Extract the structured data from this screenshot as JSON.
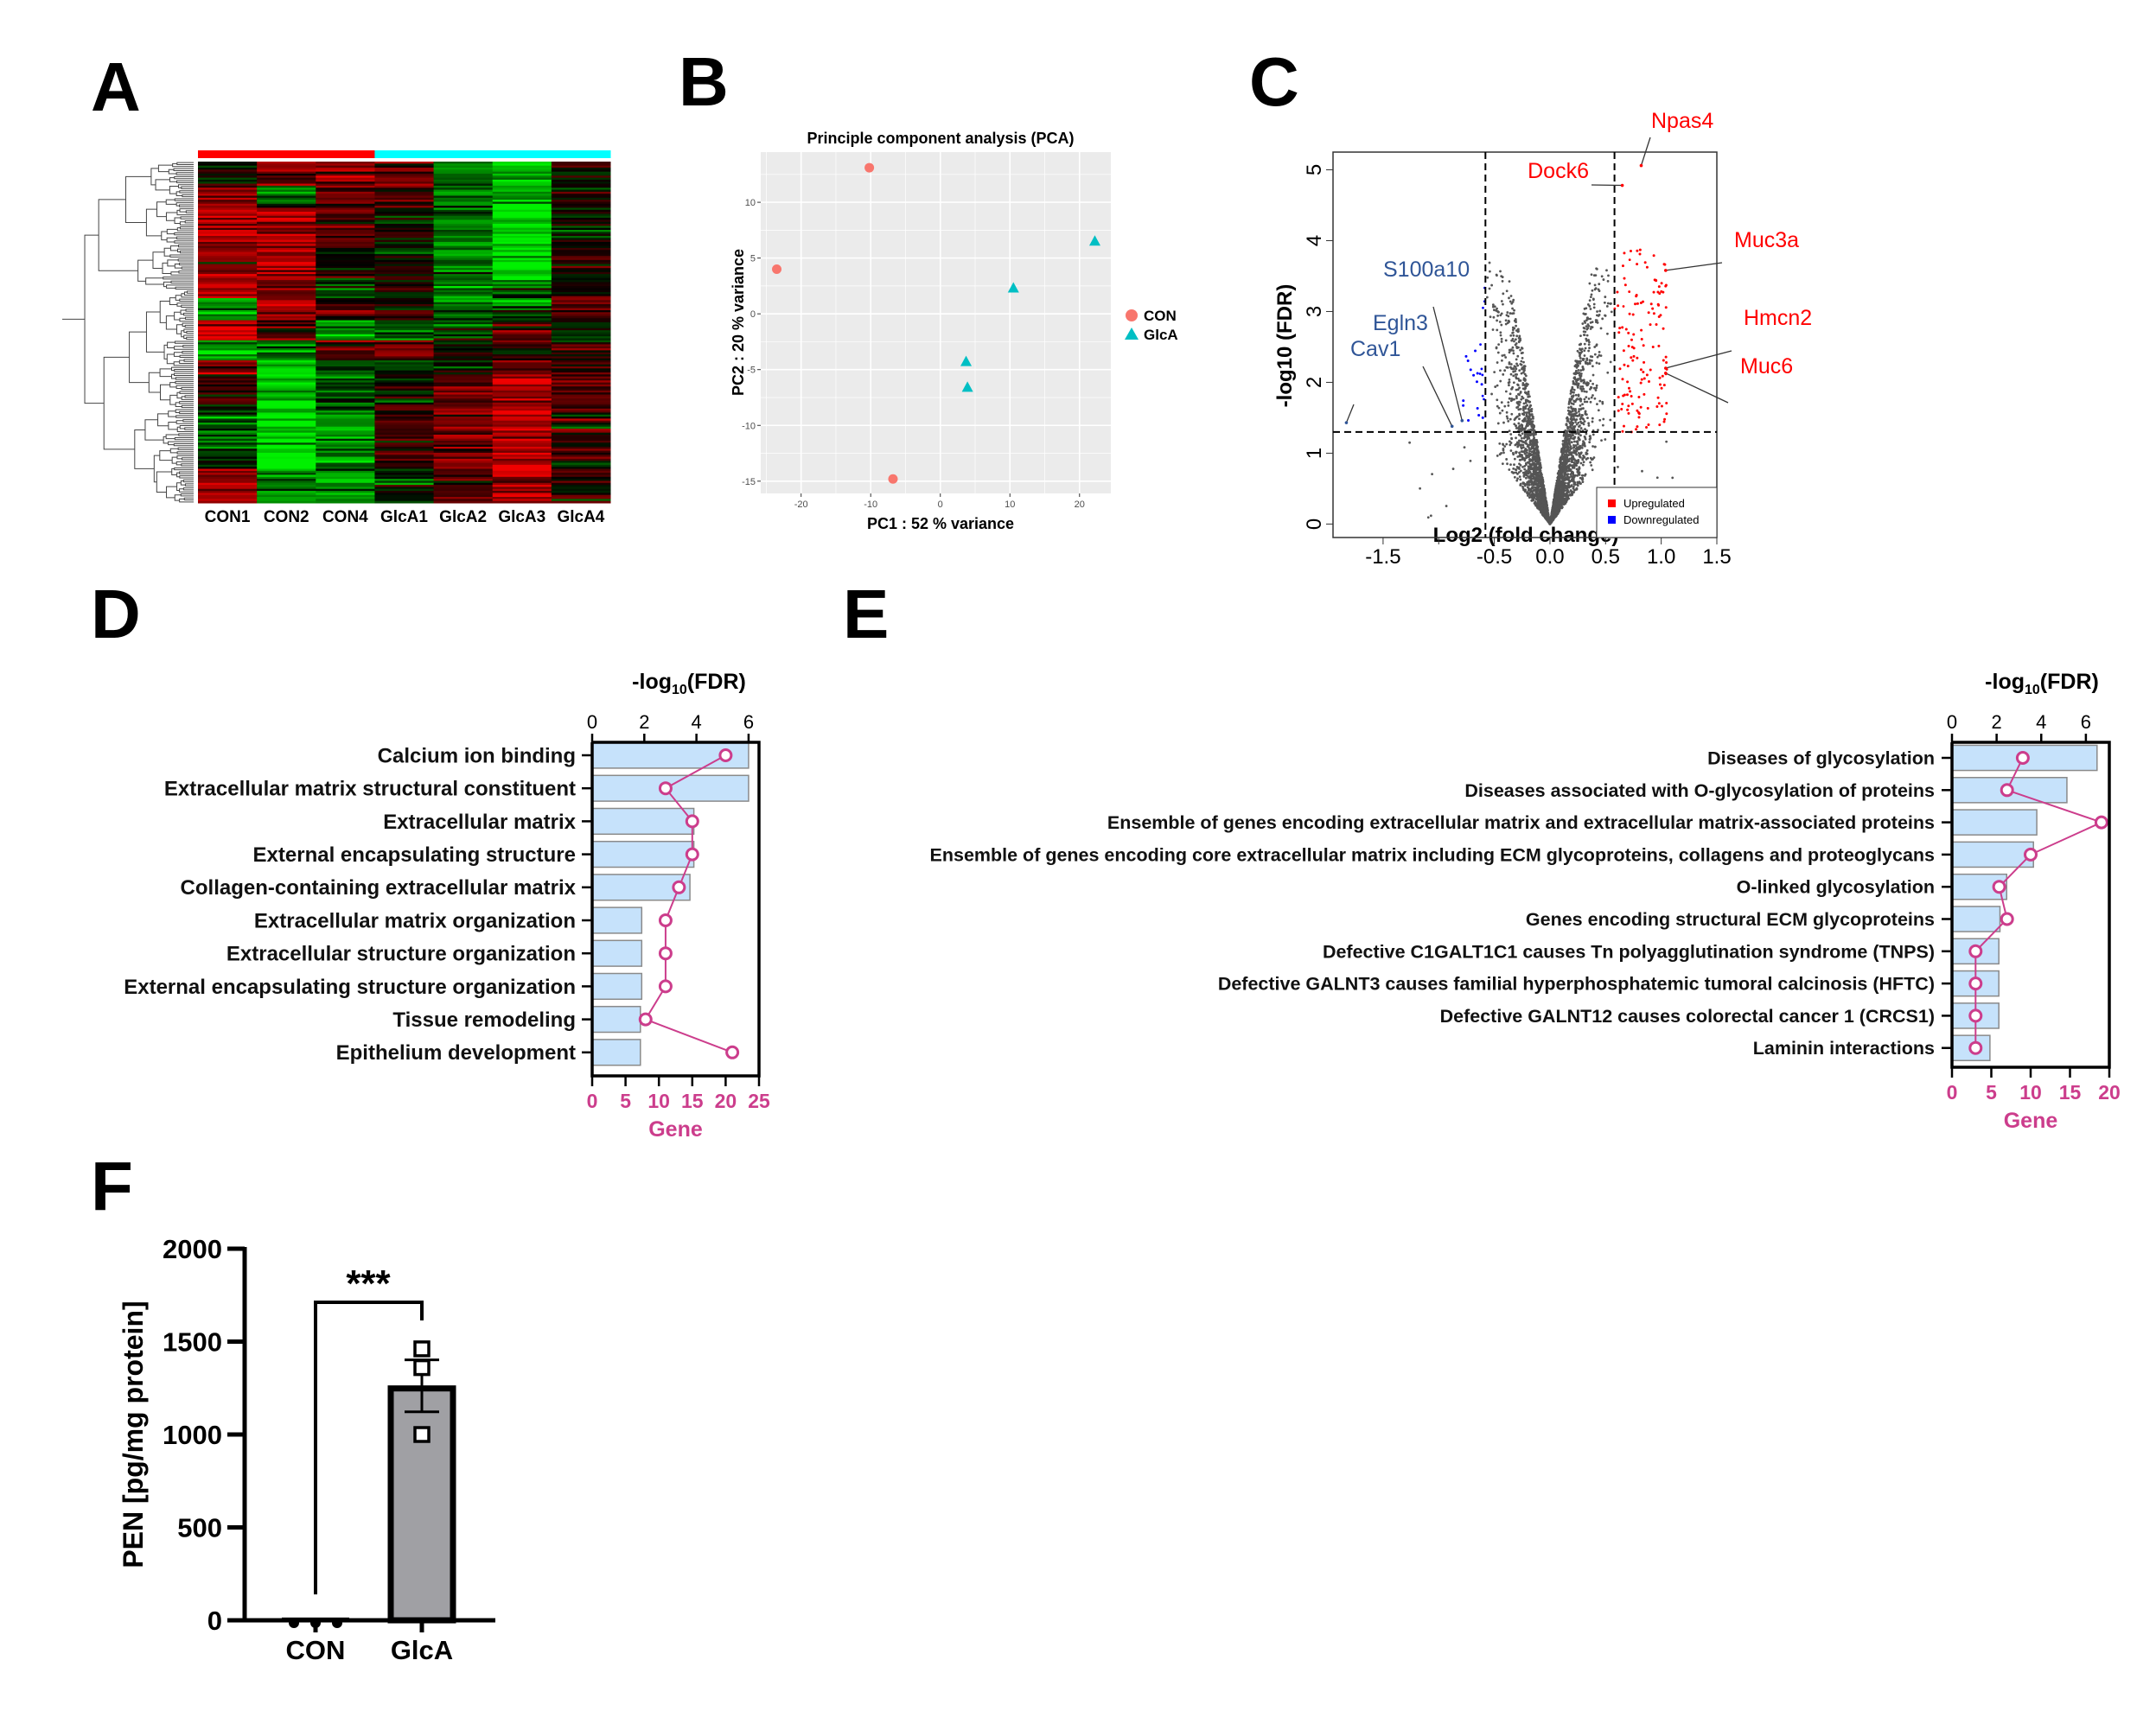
{
  "panel_labels": {
    "A": "A",
    "B": "B",
    "C": "C",
    "D": "D",
    "E": "E",
    "F": "F"
  },
  "chart_data": [
    {
      "panel": "A",
      "type": "heatmap",
      "columns": [
        "CON1",
        "CON2",
        "CON4",
        "GlcA1",
        "GlcA2",
        "GlcA3",
        "GlcA4"
      ],
      "column_group_colors": [
        "#ff0000",
        "#ff0000",
        "#ff0000",
        "#00ffff",
        "#00ffff",
        "#00ffff",
        "#00ffff"
      ],
      "color_scale": {
        "high": "#ff0000",
        "mid": "#000000",
        "low": "#00ff00"
      },
      "row_dendrogram": true
    },
    {
      "panel": "B",
      "type": "scatter",
      "title": "Principle component analysis (PCA)",
      "xlabel": "PC1 : 52 % variance",
      "ylabel": "PC2 : 20 % variance",
      "xlim": [
        -25.8,
        24.5
      ],
      "ylim": [
        -16.1,
        14.5
      ],
      "xticks": [
        -20,
        -10,
        0,
        10,
        20
      ],
      "yticks": [
        -15,
        -10,
        -5,
        0,
        5,
        10
      ],
      "grid": true,
      "legend": "right",
      "series": [
        {
          "name": "CON",
          "color": "#f8766d",
          "marker": "circle",
          "points": [
            [
              -23.5,
              4.0
            ],
            [
              -10.2,
              13.1
            ],
            [
              -6.8,
              -14.8
            ]
          ]
        },
        {
          "name": "GlcA",
          "color": "#00bfc4",
          "marker": "triangle",
          "points": [
            [
              22.2,
              6.5
            ],
            [
              10.5,
              2.3
            ],
            [
              3.7,
              -4.3
            ],
            [
              3.9,
              -6.6
            ]
          ]
        }
      ]
    },
    {
      "panel": "C",
      "type": "scatter",
      "xlabel": "Log2 (fold change)",
      "ylabel": "-log10 (FDR)",
      "xlim": [
        -1.95,
        1.5
      ],
      "ylim": [
        -0.19,
        5.25
      ],
      "xticks": [
        -1.5,
        -1.0,
        -0.5,
        0.0,
        0.5,
        1.0,
        1.5
      ],
      "xtick_labels": [
        "-1.5",
        "",
        "-0.5",
        "0.0",
        "0.5",
        "1.0",
        "1.5"
      ],
      "yticks": [
        0,
        1,
        2,
        3,
        4,
        5
      ],
      "thresholds": {
        "log2fc": 0.58,
        "neg_log10_fdr": 1.3
      },
      "legend": "bottom-right",
      "legend_entries": [
        {
          "label": "Upregulated",
          "color": "#ff0000"
        },
        {
          "label": "Downregulated",
          "color": "#0000ff"
        }
      ],
      "point_color": "#555555",
      "labeled_genes": [
        {
          "name": "Npas4",
          "x": 0.82,
          "y": 5.06,
          "direction": "up"
        },
        {
          "name": "Dock6",
          "x": 0.65,
          "y": 4.78,
          "direction": "up"
        },
        {
          "name": "Muc3a",
          "x": 1.04,
          "y": 3.58,
          "direction": "up"
        },
        {
          "name": "Hmcn2",
          "x": 1.04,
          "y": 2.2,
          "direction": "up"
        },
        {
          "name": "Muc6",
          "x": 1.04,
          "y": 2.13,
          "direction": "up"
        },
        {
          "name": "S100a10",
          "x": -0.79,
          "y": 1.46,
          "direction": "down"
        },
        {
          "name": "Egln3",
          "x": -0.88,
          "y": 1.38,
          "direction": "down"
        },
        {
          "name": "Cav1",
          "x": -1.83,
          "y": 1.43,
          "direction": "down"
        }
      ]
    },
    {
      "panel": "D",
      "type": "bar",
      "orientation": "horizontal",
      "top_axis_title": {
        "prefix": "-log",
        "sub": "10",
        "suffix": "(FDR)"
      },
      "bottom_axis_title": "Gene",
      "fdr_ticks": [
        0,
        2,
        4,
        6
      ],
      "gene_ticks": [
        0,
        5,
        10,
        15,
        20,
        25
      ],
      "fdr_lim": [
        0,
        6.4
      ],
      "gene_lim": [
        0,
        25
      ],
      "bar_color": "#c6e2fb",
      "line_color": "#cc3d8c",
      "categories": [
        "Calcium ion binding",
        "Extracellular matrix structural constituent",
        "Extracellular matrix",
        "External encapsulating structure",
        "Collagen-containing extracellular matrix",
        "Extracellular matrix organization",
        "Extracellular structure organization",
        "External encapsulating structure organization",
        "Tissue remodeling",
        "Epithelium development"
      ],
      "neg_log10_fdr": [
        6.0,
        6.0,
        3.9,
        3.9,
        3.75,
        1.9,
        1.9,
        1.9,
        1.85,
        1.85
      ],
      "gene_count": [
        20,
        11,
        15,
        15,
        13,
        11,
        11,
        11,
        8,
        21
      ]
    },
    {
      "panel": "E",
      "type": "bar",
      "orientation": "horizontal",
      "top_axis_title": {
        "prefix": "-log",
        "sub": "10",
        "suffix": "(FDR)"
      },
      "bottom_axis_title": "Gene",
      "fdr_ticks": [
        0,
        2,
        4,
        6
      ],
      "gene_ticks": [
        0,
        5,
        10,
        15,
        20
      ],
      "fdr_lim": [
        0,
        7.05
      ],
      "gene_lim": [
        0,
        20
      ],
      "bar_color": "#c6e2fb",
      "line_color": "#cc3d8c",
      "categories": [
        "Diseases of glycosylation",
        "Diseases associated with O-glycosylation of proteins",
        "Ensemble of genes encoding extracellular matrix and extracellular matrix-associated proteins",
        "Ensemble of genes encoding core extracellular matrix including ECM glycoproteins, collagens and proteoglycans",
        "O-linked glycosylation",
        "Genes encoding structural ECM glycoproteins",
        "Defective C1GALT1C1 causes Tn polyagglutination syndrome (TNPS)",
        "Defective GALNT3 causes familial hyperphosphatemic tumoral calcinosis (HFTC)",
        "Defective GALNT12 causes colorectal cancer 1 (CRCS1)",
        "Laminin interactions"
      ],
      "neg_log10_fdr": [
        6.5,
        5.15,
        3.8,
        3.65,
        2.45,
        2.15,
        2.1,
        2.1,
        2.1,
        1.7
      ],
      "gene_count": [
        9,
        7,
        19,
        10,
        6,
        7,
        3,
        3,
        3,
        3
      ]
    },
    {
      "panel": "F",
      "type": "bar",
      "categories": [
        "CON",
        "GlcA"
      ],
      "values": [
        15,
        1262
      ],
      "sem": [
        0,
        140
      ],
      "points": [
        [
          0,
          0,
          0
        ],
        [
          1461,
          1360,
          1000
        ]
      ],
      "ylabel": "PEN [pg/mg protein]",
      "ylim": [
        0,
        2000
      ],
      "yticks": [
        0,
        500,
        1000,
        1500,
        2000
      ],
      "bar_color": "#a0a0a4",
      "significance": "***"
    }
  ]
}
